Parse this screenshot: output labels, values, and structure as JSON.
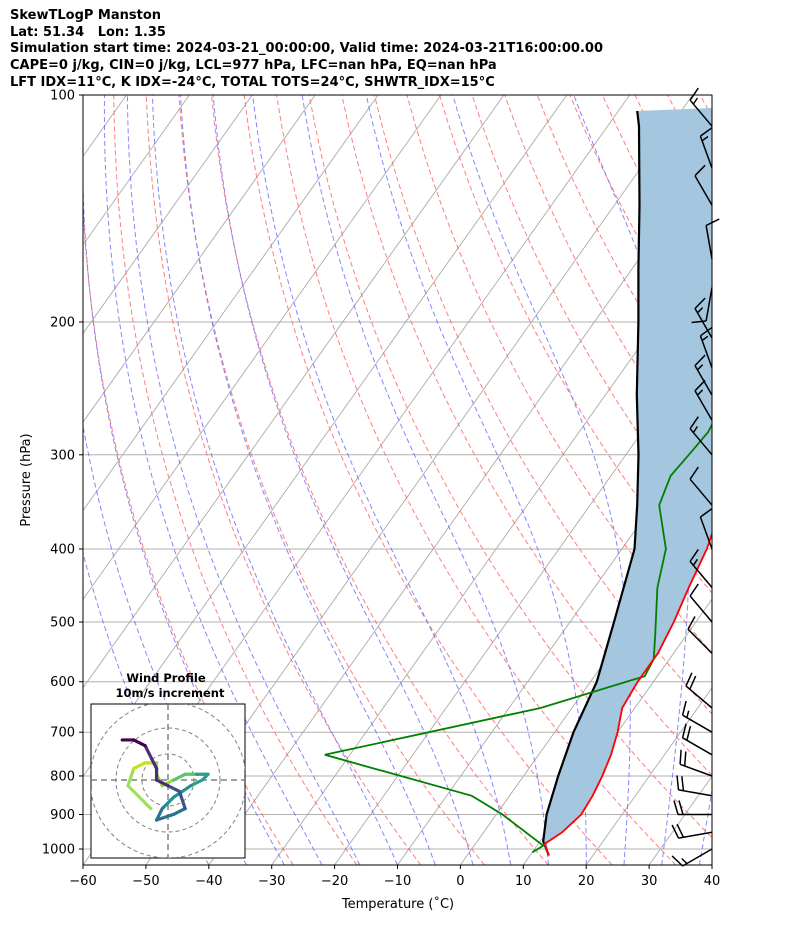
{
  "header": {
    "line1": "SkewTLogP Manston",
    "line2": "Lat: 51.34   Lon: 1.35",
    "line3": "Simulation start time: 2024-03-21_00:00:00, Valid time: 2024-03-21T16:00:00.00",
    "line4": "CAPE=0 j/kg, CIN=0 j/kg, LCL=977 hPa, LFC=nan hPa, EQ=nan hPa",
    "line5": "LFT IDX=11°C, K IDX=-24°C, TOTAL TOTS=24°C, SHWTR_IDX=15°C"
  },
  "chart_data": {
    "type": "line",
    "subtype": "skew-t log-p diagram",
    "xlabel": "Temperature (˚C)",
    "ylabel": "Pressure (hPa)",
    "xlim": [
      -60,
      40
    ],
    "ylim": [
      1050,
      100
    ],
    "y_scale": "log",
    "x_ticks": [
      "−60",
      "−50",
      "−40",
      "−30",
      "−20",
      "−10",
      "0",
      "10",
      "20",
      "30",
      "40"
    ],
    "y_ticks": [
      "100",
      "200",
      "300",
      "400",
      "500",
      "600",
      "700",
      "800",
      "900",
      "1000"
    ],
    "grid": true,
    "colors": {
      "temperature": "#ff0000",
      "dewpoint": "#008000",
      "parcel": "#000000",
      "cape_fill": "#a4c6df",
      "dry_adiabat": "#ff6666",
      "moist_adiabat": "#6666ff",
      "isotherm": "#aaaaaa"
    },
    "series": [
      {
        "key": "temperature",
        "points": [
          [
            13,
            1020
          ],
          [
            11,
            985
          ],
          [
            12.5,
            950
          ],
          [
            13.5,
            900
          ],
          [
            13.2,
            850
          ],
          [
            12.5,
            800
          ],
          [
            11.5,
            750
          ],
          [
            10,
            700
          ],
          [
            8,
            650
          ],
          [
            7.5,
            600
          ],
          [
            7.5,
            550
          ],
          [
            6.5,
            500
          ],
          [
            5,
            450
          ],
          [
            3.5,
            400
          ],
          [
            1,
            350
          ],
          [
            -2,
            300
          ],
          [
            -4.5,
            280
          ],
          [
            -6.5,
            265
          ],
          [
            -9,
            250
          ],
          [
            -11.5,
            235
          ],
          [
            -14,
            220
          ],
          [
            -15,
            210
          ],
          [
            -15,
            200
          ],
          [
            -14.5,
            190
          ],
          [
            -13.5,
            180
          ],
          [
            -12.5,
            170
          ],
          [
            -11,
            160
          ],
          [
            -8,
            150
          ],
          [
            -5.5,
            140
          ],
          [
            -3,
            130
          ],
          [
            0.5,
            120
          ],
          [
            3,
            110
          ],
          [
            4.5,
            100
          ]
        ]
      },
      {
        "key": "dewpoint",
        "points": [
          [
            10,
            1010
          ],
          [
            11,
            990
          ],
          [
            1,
            900
          ],
          [
            -6,
            850
          ],
          [
            -34,
            750
          ],
          [
            -5,
            650
          ],
          [
            8,
            590
          ],
          [
            7.5,
            560
          ],
          [
            5,
            520
          ],
          [
            0,
            450
          ],
          [
            -3,
            400
          ],
          [
            -9,
            350
          ],
          [
            -10.5,
            320
          ],
          [
            -10,
            300
          ],
          [
            -9.5,
            280
          ],
          [
            -10,
            265
          ],
          [
            -9.5,
            250
          ],
          [
            -9.5,
            230
          ],
          [
            -10,
            220
          ],
          [
            -11,
            210
          ],
          [
            -11,
            200
          ],
          [
            -9,
            185
          ],
          [
            -6,
            170
          ],
          [
            -4,
            155
          ],
          [
            -3,
            145
          ],
          [
            -6.5,
            140
          ],
          [
            -3,
            130
          ],
          [
            -1,
            120
          ],
          [
            2,
            110
          ],
          [
            4,
            100
          ]
        ]
      },
      {
        "key": "parcel",
        "points": [
          [
            13,
            1020
          ],
          [
            10.5,
            977
          ],
          [
            8,
            900
          ],
          [
            5.5,
            800
          ],
          [
            3,
            700
          ],
          [
            1,
            600
          ],
          [
            -3,
            500
          ],
          [
            -8,
            400
          ],
          [
            -12.5,
            350
          ],
          [
            -18,
            300
          ],
          [
            -25,
            250
          ],
          [
            -33,
            200
          ],
          [
            -39,
            170
          ],
          [
            -46,
            140
          ],
          [
            -55,
            110
          ],
          [
            -57,
            105
          ]
        ]
      }
    ],
    "wind_barbs": [
      {
        "pressure": 1000,
        "direction": 240,
        "speed_kt": 15
      },
      {
        "pressure": 950,
        "direction": 260,
        "speed_kt": 20
      },
      {
        "pressure": 900,
        "direction": 270,
        "speed_kt": 20
      },
      {
        "pressure": 850,
        "direction": 280,
        "speed_kt": 20
      },
      {
        "pressure": 800,
        "direction": 290,
        "speed_kt": 20
      },
      {
        "pressure": 750,
        "direction": 300,
        "speed_kt": 20
      },
      {
        "pressure": 700,
        "direction": 300,
        "speed_kt": 15
      },
      {
        "pressure": 650,
        "direction": 310,
        "speed_kt": 20
      },
      {
        "pressure": 550,
        "direction": 315,
        "speed_kt": 10
      },
      {
        "pressure": 500,
        "direction": 320,
        "speed_kt": 10
      },
      {
        "pressure": 450,
        "direction": 320,
        "speed_kt": 15
      },
      {
        "pressure": 400,
        "direction": 340,
        "speed_kt": 10
      },
      {
        "pressure": 350,
        "direction": 320,
        "speed_kt": 10
      },
      {
        "pressure": 300,
        "direction": 320,
        "speed_kt": 15
      },
      {
        "pressure": 270,
        "direction": 330,
        "speed_kt": 15
      },
      {
        "pressure": 250,
        "direction": 330,
        "speed_kt": 15
      },
      {
        "pressure": 230,
        "direction": 340,
        "speed_kt": 15
      },
      {
        "pressure": 210,
        "direction": 330,
        "speed_kt": 15
      },
      {
        "pressure": 180,
        "direction": 190,
        "speed_kt": 10
      },
      {
        "pressure": 165,
        "direction": 350,
        "speed_kt": 10
      },
      {
        "pressure": 140,
        "direction": 330,
        "speed_kt": 10
      },
      {
        "pressure": 125,
        "direction": 340,
        "speed_kt": 15
      },
      {
        "pressure": 110,
        "direction": 320,
        "speed_kt": 15
      }
    ],
    "hodograph": {
      "title": "Wind Profile",
      "subtitle": "10m/s increment",
      "ring_spacing_ms": 10,
      "points": [
        [
          -3,
          -5
        ],
        [
          -5,
          -3
        ],
        [
          -7,
          -1
        ],
        [
          -6,
          2
        ],
        [
          -4,
          3
        ],
        [
          -2,
          3
        ],
        [
          -2,
          1
        ],
        [
          -1,
          -1
        ],
        [
          1,
          0
        ],
        [
          3,
          1
        ],
        [
          5,
          1
        ],
        [
          7,
          1
        ],
        [
          6,
          0
        ],
        [
          4,
          -1
        ],
        [
          1,
          -3
        ],
        [
          -1,
          -5
        ],
        [
          -2,
          -7
        ],
        [
          1,
          -6
        ],
        [
          3,
          -5
        ],
        [
          2,
          -2
        ],
        [
          0,
          -1
        ],
        [
          -2,
          0
        ],
        [
          -2,
          2
        ],
        [
          -4,
          6
        ],
        [
          -6,
          7
        ],
        [
          -8,
          7
        ]
      ]
    }
  }
}
